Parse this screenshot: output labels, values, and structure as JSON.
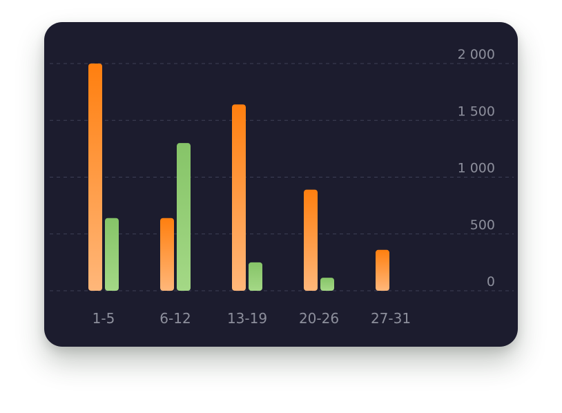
{
  "chart_data": {
    "type": "bar",
    "categories": [
      "1-5",
      "6-12",
      "13-19",
      "20-26",
      "27-31"
    ],
    "series": [
      {
        "values": [
          2000,
          640,
          1640,
          890,
          360
        ]
      },
      {
        "values": [
          640,
          1300,
          250,
          115,
          null
        ]
      }
    ],
    "ylim": [
      0,
      2000
    ],
    "yticks": [
      0,
      500,
      1000,
      1500,
      2000
    ],
    "ytick_labels": [
      "0",
      "500",
      "1 000",
      "1 500",
      "2 000"
    ],
    "y_axis_side": "right",
    "grid": "horizontal-dashed",
    "legend": "none"
  },
  "colors": {
    "card_bg": "#1c1c2e",
    "series1_top": "#ff7f0f",
    "series1_bottom": "#ffb77a",
    "series2_top": "#86c468",
    "series2_bottom": "#a4d886",
    "tick_text": "#8d8f9c",
    "grid": "#3e4057"
  }
}
